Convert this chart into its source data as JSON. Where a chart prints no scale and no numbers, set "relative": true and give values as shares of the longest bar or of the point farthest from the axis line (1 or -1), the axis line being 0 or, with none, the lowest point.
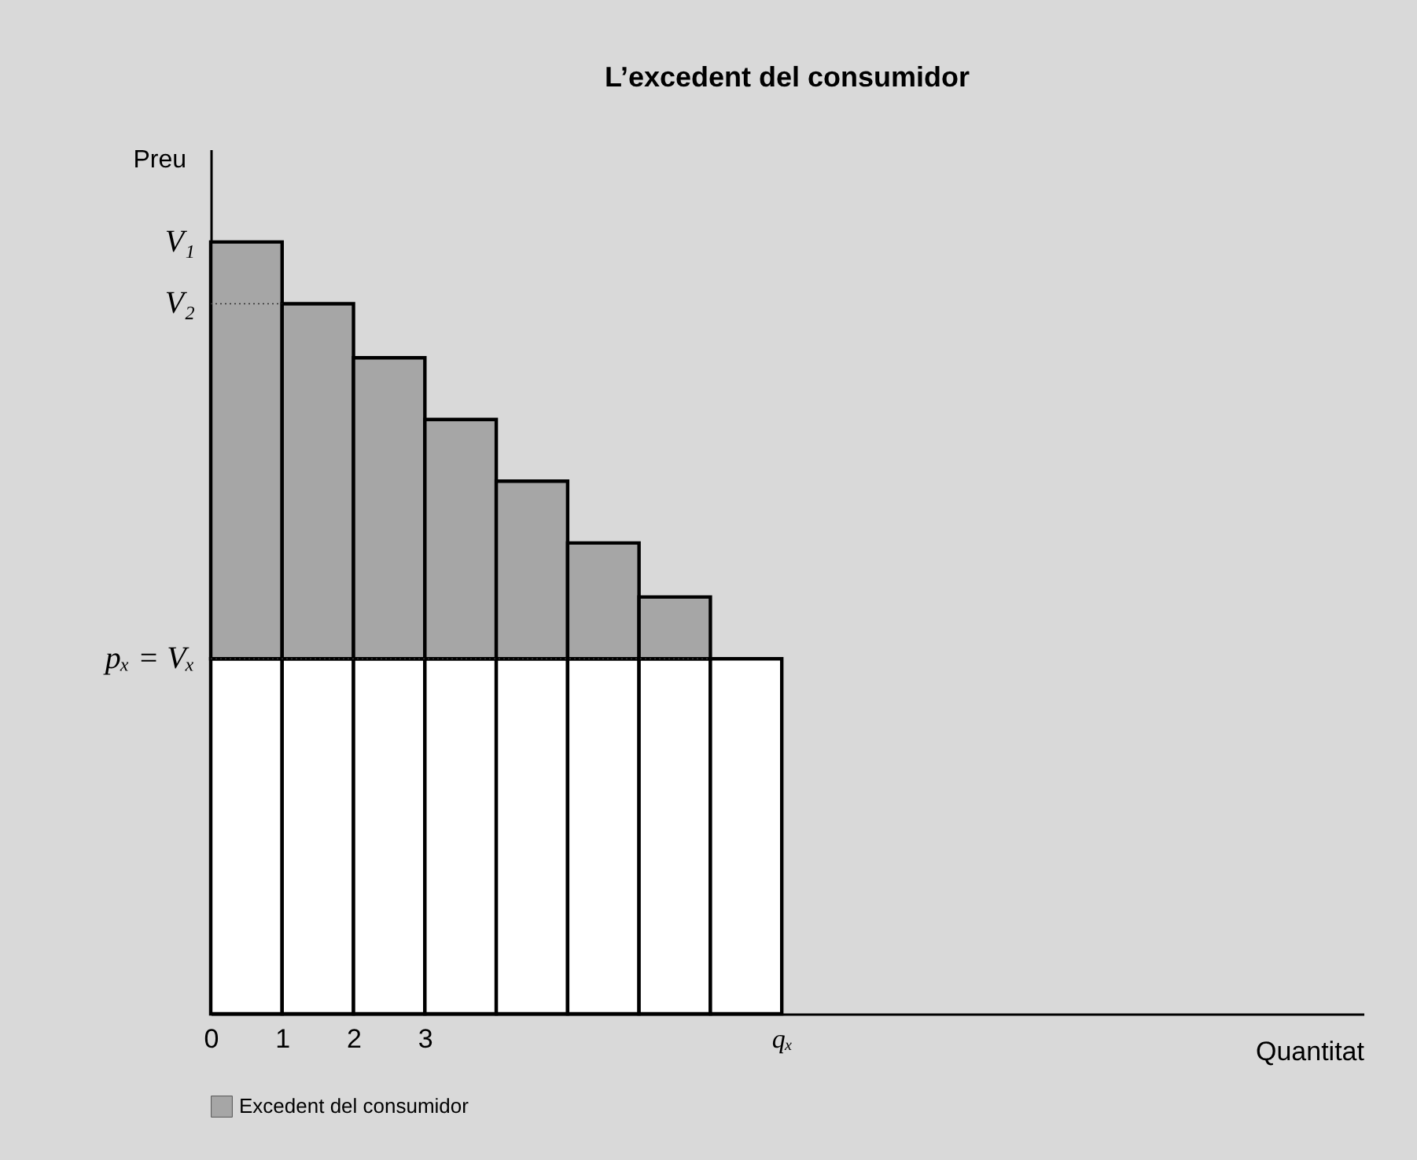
{
  "chart_data": {
    "type": "bar",
    "title": "L’excedent del consumidor",
    "xlabel": "Quantitat",
    "ylabel": "Preu",
    "relative": true,
    "stacked": true,
    "x": [
      0.5,
      1.5,
      2.5,
      3.5,
      4.5,
      5.5,
      6.5,
      7.5
    ],
    "series": [
      {
        "color": "#ffffff",
        "values": [
          0.46,
          0.46,
          0.46,
          0.46,
          0.46,
          0.46,
          0.46,
          0.46
        ]
      },
      {
        "name": "Excedent del consumidor",
        "color": "#a6a6a6",
        "values": [
          0.54,
          0.46,
          0.39,
          0.31,
          0.23,
          0.15,
          0.08,
          null
        ]
      }
    ],
    "xlim": [
      0,
      16.15
    ],
    "xticks": [
      0,
      1,
      2,
      3,
      {
        "value": 8,
        "label": "qₓ"
      }
    ],
    "annotations": [
      {
        "text": "V₁",
        "x": 0,
        "y": 1
      }
    ],
    "ref_lines": [
      {
        "axis": "y",
        "value": 0.92,
        "label": "V₂",
        "line_style": "dotted"
      },
      {
        "axis": "y",
        "value": 0.46,
        "label": "pₓ = Vₓ",
        "line_style": "dotted"
      }
    ],
    "legend": "bottom left"
  }
}
